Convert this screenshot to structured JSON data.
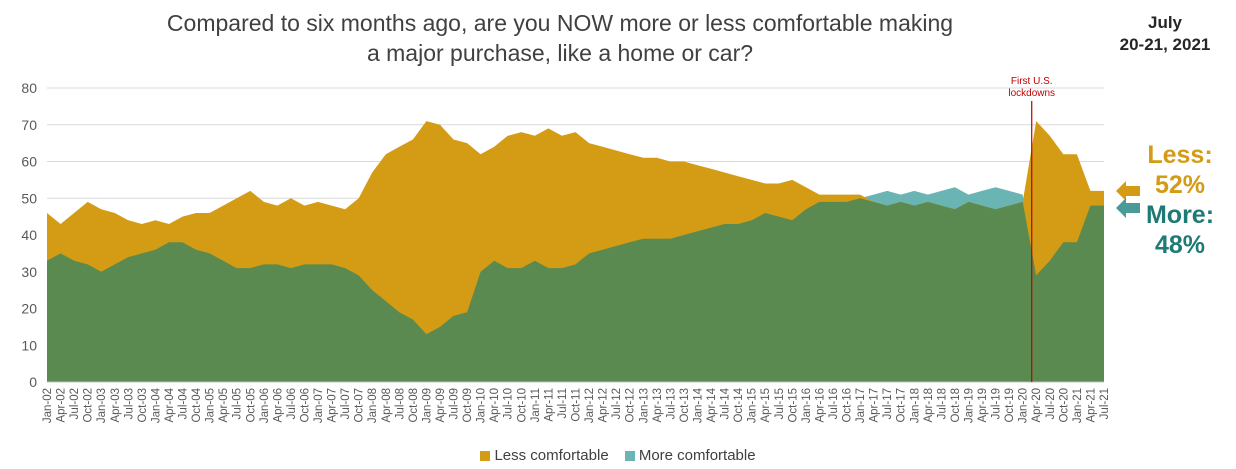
{
  "title_line1": "Compared to six months ago, are you NOW more or less comfortable making",
  "title_line2": "a major purchase, like a home or car?",
  "date_line1": "July",
  "date_line2": "20-21, 2021",
  "less_label": "Less:",
  "less_value": "52%",
  "more_label": "More:",
  "more_value": "48%",
  "colors": {
    "less": "#d49b14",
    "more_teal": "#6bb4b4",
    "more_green": "#5a8a50",
    "annotation": "#c00000"
  },
  "chart_data": {
    "type": "area",
    "title": "Compared to six months ago, are you NOW more or less comfortable making a major purchase, like a home or car?",
    "ylim": [
      0,
      80
    ],
    "yticks": [
      0,
      10,
      20,
      30,
      40,
      50,
      60,
      70,
      80
    ],
    "grid": true,
    "legend_position": "bottom",
    "x_start": "2002-01",
    "x_end": "2021-07",
    "xtick_labels": [
      "Jan-02",
      "Apr-02",
      "Jul-02",
      "Oct-02",
      "Jan-03",
      "Apr-03",
      "Jul-03",
      "Oct-03",
      "Jan-04",
      "Apr-04",
      "Jul-04",
      "Oct-04",
      "Jan-05",
      "Apr-05",
      "Jul-05",
      "Oct-05",
      "Jan-06",
      "Apr-06",
      "Jul-06",
      "Oct-06",
      "Jan-07",
      "Apr-07",
      "Jul-07",
      "Oct-07",
      "Jan-08",
      "Apr-08",
      "Jul-08",
      "Oct-08",
      "Jan-09",
      "Apr-09",
      "Jul-09",
      "Oct-09",
      "Jan-10",
      "Apr-10",
      "Jul-10",
      "Oct-10",
      "Jan-11",
      "Apr-11",
      "Jul-11",
      "Oct-11",
      "Jan-12",
      "Apr-12",
      "Jul-12",
      "Oct-12",
      "Jan-13",
      "Apr-13",
      "Jul-13",
      "Oct-13",
      "Jan-14",
      "Apr-14",
      "Jul-14",
      "Oct-14",
      "Jan-15",
      "Apr-15",
      "Jul-15",
      "Oct-15",
      "Jan-16",
      "Apr-16",
      "Jul-16",
      "Oct-16",
      "Jan-17",
      "Apr-17",
      "Jul-17",
      "Oct-17",
      "Jan-18",
      "Apr-18",
      "Jul-18",
      "Oct-18",
      "Jan-19",
      "Apr-19",
      "Jul-19",
      "Oct-19",
      "Jan-20",
      "Apr-20",
      "Jul-20",
      "Oct-20",
      "Jan-21",
      "Apr-21",
      "Jul-21"
    ],
    "annotation": {
      "date": "2020-03",
      "text_line1": "First U.S.",
      "text_line2": "lockdowns"
    },
    "series": [
      {
        "name": "Less comfortable",
        "points": [
          [
            "2002-01",
            46
          ],
          [
            "2002-04",
            43
          ],
          [
            "2002-07",
            46
          ],
          [
            "2002-10",
            49
          ],
          [
            "2003-01",
            47
          ],
          [
            "2003-04",
            46
          ],
          [
            "2003-07",
            44
          ],
          [
            "2003-10",
            43
          ],
          [
            "2004-01",
            44
          ],
          [
            "2004-04",
            43
          ],
          [
            "2004-07",
            45
          ],
          [
            "2004-10",
            46
          ],
          [
            "2005-01",
            46
          ],
          [
            "2005-04",
            48
          ],
          [
            "2005-07",
            50
          ],
          [
            "2005-10",
            52
          ],
          [
            "2006-01",
            49
          ],
          [
            "2006-04",
            48
          ],
          [
            "2006-07",
            50
          ],
          [
            "2006-10",
            48
          ],
          [
            "2007-01",
            49
          ],
          [
            "2007-04",
            48
          ],
          [
            "2007-07",
            47
          ],
          [
            "2007-10",
            50
          ],
          [
            "2008-01",
            57
          ],
          [
            "2008-04",
            62
          ],
          [
            "2008-07",
            64
          ],
          [
            "2008-10",
            66
          ],
          [
            "2009-01",
            71
          ],
          [
            "2009-04",
            70
          ],
          [
            "2009-07",
            66
          ],
          [
            "2009-10",
            65
          ],
          [
            "2010-01",
            62
          ],
          [
            "2010-04",
            64
          ],
          [
            "2010-07",
            67
          ],
          [
            "2010-10",
            68
          ],
          [
            "2011-01",
            67
          ],
          [
            "2011-04",
            69
          ],
          [
            "2011-07",
            67
          ],
          [
            "2011-10",
            68
          ],
          [
            "2012-01",
            65
          ],
          [
            "2012-04",
            64
          ],
          [
            "2012-07",
            63
          ],
          [
            "2012-10",
            62
          ],
          [
            "2013-01",
            61
          ],
          [
            "2013-04",
            61
          ],
          [
            "2013-07",
            60
          ],
          [
            "2013-10",
            60
          ],
          [
            "2014-01",
            59
          ],
          [
            "2014-04",
            58
          ],
          [
            "2014-07",
            57
          ],
          [
            "2014-10",
            56
          ],
          [
            "2015-01",
            55
          ],
          [
            "2015-04",
            54
          ],
          [
            "2015-07",
            54
          ],
          [
            "2015-10",
            55
          ],
          [
            "2016-01",
            53
          ],
          [
            "2016-04",
            51
          ],
          [
            "2016-07",
            51
          ],
          [
            "2016-10",
            51
          ],
          [
            "2017-01",
            51
          ],
          [
            "2017-04",
            49
          ],
          [
            "2017-07",
            48
          ],
          [
            "2017-10",
            49
          ],
          [
            "2018-01",
            48
          ],
          [
            "2018-04",
            49
          ],
          [
            "2018-07",
            48
          ],
          [
            "2018-10",
            47
          ],
          [
            "2019-01",
            49
          ],
          [
            "2019-04",
            48
          ],
          [
            "2019-07",
            47
          ],
          [
            "2019-10",
            48
          ],
          [
            "2020-01",
            49
          ],
          [
            "2020-04",
            71
          ],
          [
            "2020-07",
            67
          ],
          [
            "2020-10",
            62
          ],
          [
            "2021-01",
            62
          ],
          [
            "2021-04",
            52
          ],
          [
            "2021-07",
            52
          ]
        ]
      },
      {
        "name": "More comfortable",
        "points": [
          [
            "2002-01",
            33
          ],
          [
            "2002-04",
            35
          ],
          [
            "2002-07",
            33
          ],
          [
            "2002-10",
            32
          ],
          [
            "2003-01",
            30
          ],
          [
            "2003-04",
            32
          ],
          [
            "2003-07",
            34
          ],
          [
            "2003-10",
            35
          ],
          [
            "2004-01",
            36
          ],
          [
            "2004-04",
            38
          ],
          [
            "2004-07",
            38
          ],
          [
            "2004-10",
            36
          ],
          [
            "2005-01",
            35
          ],
          [
            "2005-04",
            33
          ],
          [
            "2005-07",
            31
          ],
          [
            "2005-10",
            31
          ],
          [
            "2006-01",
            32
          ],
          [
            "2006-04",
            32
          ],
          [
            "2006-07",
            31
          ],
          [
            "2006-10",
            32
          ],
          [
            "2007-01",
            32
          ],
          [
            "2007-04",
            32
          ],
          [
            "2007-07",
            31
          ],
          [
            "2007-10",
            29
          ],
          [
            "2008-01",
            25
          ],
          [
            "2008-04",
            22
          ],
          [
            "2008-07",
            19
          ],
          [
            "2008-10",
            17
          ],
          [
            "2009-01",
            13
          ],
          [
            "2009-04",
            15
          ],
          [
            "2009-07",
            18
          ],
          [
            "2009-10",
            19
          ],
          [
            "2010-01",
            30
          ],
          [
            "2010-04",
            33
          ],
          [
            "2010-07",
            31
          ],
          [
            "2010-10",
            31
          ],
          [
            "2011-01",
            33
          ],
          [
            "2011-04",
            31
          ],
          [
            "2011-07",
            31
          ],
          [
            "2011-10",
            32
          ],
          [
            "2012-01",
            35
          ],
          [
            "2012-04",
            36
          ],
          [
            "2012-07",
            37
          ],
          [
            "2012-10",
            38
          ],
          [
            "2013-01",
            39
          ],
          [
            "2013-04",
            39
          ],
          [
            "2013-07",
            39
          ],
          [
            "2013-10",
            40
          ],
          [
            "2014-01",
            41
          ],
          [
            "2014-04",
            42
          ],
          [
            "2014-07",
            43
          ],
          [
            "2014-10",
            43
          ],
          [
            "2015-01",
            44
          ],
          [
            "2015-04",
            46
          ],
          [
            "2015-07",
            45
          ],
          [
            "2015-10",
            44
          ],
          [
            "2016-01",
            47
          ],
          [
            "2016-04",
            49
          ],
          [
            "2016-07",
            49
          ],
          [
            "2016-10",
            49
          ],
          [
            "2017-01",
            50
          ],
          [
            "2017-04",
            51
          ],
          [
            "2017-07",
            52
          ],
          [
            "2017-10",
            51
          ],
          [
            "2018-01",
            52
          ],
          [
            "2018-04",
            51
          ],
          [
            "2018-07",
            52
          ],
          [
            "2018-10",
            53
          ],
          [
            "2019-01",
            51
          ],
          [
            "2019-04",
            52
          ],
          [
            "2019-07",
            53
          ],
          [
            "2019-10",
            52
          ],
          [
            "2020-01",
            51
          ],
          [
            "2020-04",
            29
          ],
          [
            "2020-07",
            33
          ],
          [
            "2020-10",
            38
          ],
          [
            "2021-01",
            38
          ],
          [
            "2021-04",
            48
          ],
          [
            "2021-07",
            48
          ]
        ]
      }
    ]
  }
}
